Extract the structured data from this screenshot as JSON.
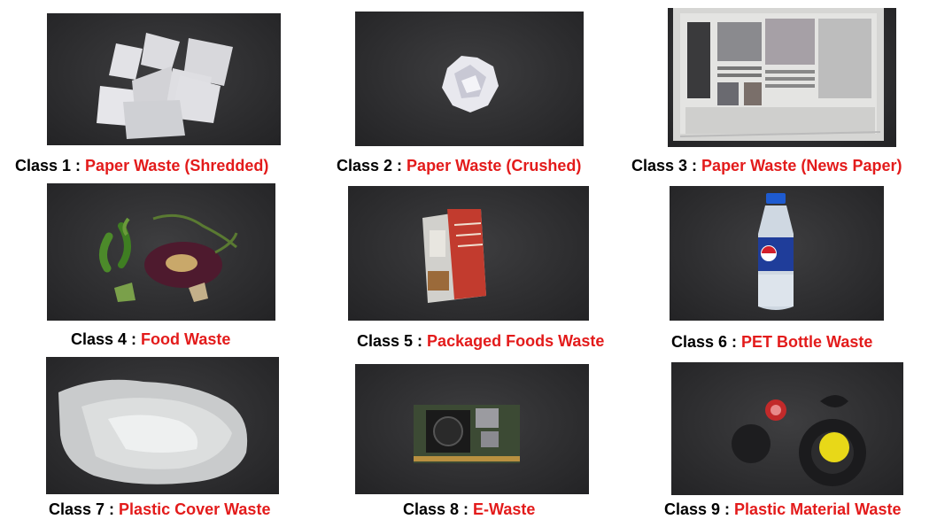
{
  "colors": {
    "label_prefix": "#000000",
    "label_name": "#e31b1b",
    "photo_background": "#2f2f31"
  },
  "separator": " : ",
  "items": [
    {
      "prefix": "Class 1",
      "name": "Paper Waste (Shredded)",
      "photo_subject": "shredded-paper"
    },
    {
      "prefix": "Class 2",
      "name": "Paper Waste (Crushed)",
      "photo_subject": "crushed-paper"
    },
    {
      "prefix": "Class 3",
      "name": "Paper Waste (News Paper)",
      "photo_subject": "newspaper"
    },
    {
      "prefix": "Class 4",
      "name": "Food Waste",
      "photo_subject": "food-scraps"
    },
    {
      "prefix": "Class 5",
      "name": "Packaged Foods Waste",
      "photo_subject": "food-packet"
    },
    {
      "prefix": "Class 6",
      "name": "PET Bottle Waste",
      "photo_subject": "pet-bottle"
    },
    {
      "prefix": "Class 7",
      "name": "Plastic Cover Waste",
      "photo_subject": "plastic-cover"
    },
    {
      "prefix": "Class 8",
      "name": "E-Waste",
      "photo_subject": "circuit-board"
    },
    {
      "prefix": "Class 9",
      "name": "Plastic Material Waste",
      "photo_subject": "plastic-parts"
    }
  ]
}
